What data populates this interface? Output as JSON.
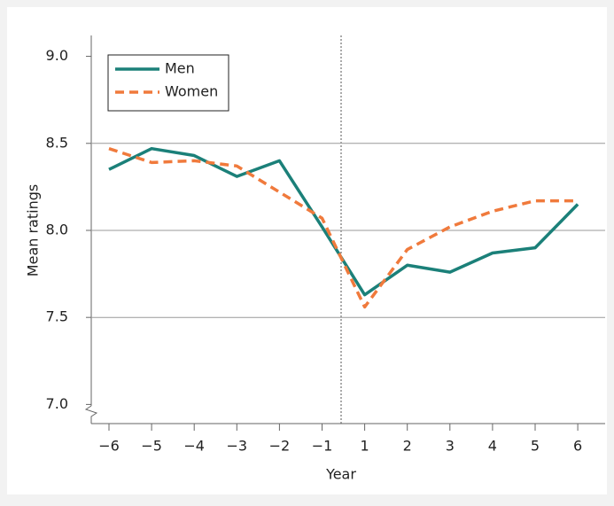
{
  "chart_data": {
    "type": "line",
    "x_label": "Year",
    "y_label": "Mean ratings",
    "categories": [
      "−6",
      "−5",
      "−4",
      "−3",
      "−2",
      "−1",
      "1",
      "2",
      "3",
      "4",
      "5",
      "6"
    ],
    "series": [
      {
        "name": "Men",
        "color": "#1b8079",
        "dashed": false,
        "values": [
          8.35,
          8.47,
          8.43,
          8.31,
          8.4,
          8.02,
          7.63,
          7.8,
          7.76,
          7.87,
          7.9,
          8.15
        ]
      },
      {
        "name": "Women",
        "color": "#f07a3c",
        "dashed": true,
        "values": [
          8.47,
          8.39,
          8.4,
          8.37,
          8.22,
          8.07,
          7.56,
          7.89,
          8.02,
          8.11,
          8.17,
          8.17
        ]
      }
    ],
    "ylim": [
      6.89,
      9.12
    ],
    "yticks": [
      {
        "value": 7,
        "label": "7.0"
      },
      7.5,
      {
        "value": 8,
        "label": "8.0"
      },
      8.5,
      {
        "value": 9,
        "label": "9.0"
      }
    ],
    "grid": true
  }
}
